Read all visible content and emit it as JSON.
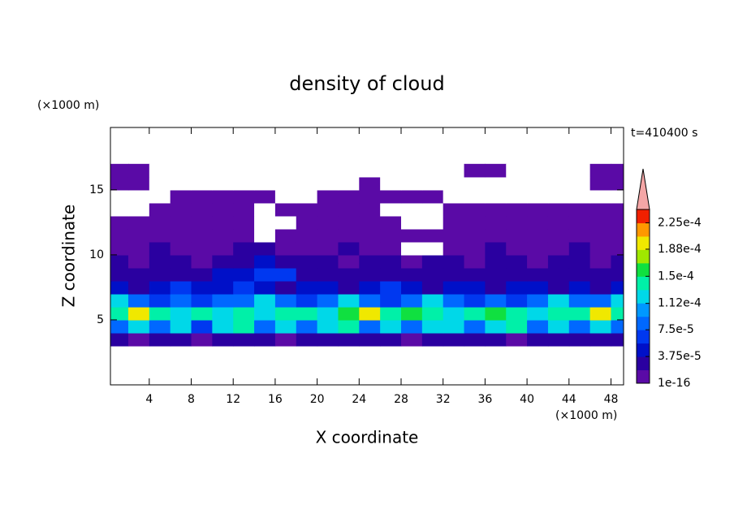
{
  "chart_data": {
    "type": "contour",
    "title": "density of cloud",
    "xlabel": "X coordinate",
    "ylabel": "Z coordinate",
    "xunit": "(×1000 m)",
    "yunit": "(×1000 m)",
    "annotation": "t=410400 s",
    "xlim": [
      0.3,
      49.2
    ],
    "ylim": [
      0,
      19.8
    ],
    "xticks": [
      4,
      8,
      12,
      16,
      20,
      24,
      28,
      32,
      36,
      40,
      44,
      48
    ],
    "yticks": [
      5,
      10,
      15
    ],
    "x": [
      1,
      3,
      5,
      7,
      9,
      11,
      13,
      15,
      17,
      19,
      21,
      23,
      25,
      27,
      29,
      31,
      33,
      35,
      37,
      39,
      41,
      43,
      45,
      47,
      49
    ],
    "z": [
      3.5,
      4.5,
      5.5,
      6.5,
      7.5,
      8.5,
      9.5,
      10.5,
      11.5,
      12.5,
      13.5,
      14.5,
      15.5,
      16.5
    ],
    "density": [
      [
        2e-05,
        1e-05,
        2e-05,
        2e-05,
        1e-05,
        2e-05,
        2e-05,
        2e-05,
        1e-05,
        2e-05,
        2e-05,
        2e-05,
        2e-05,
        2e-05,
        1e-05,
        2e-05,
        2e-05,
        2e-05,
        2e-05,
        1e-05,
        2e-05,
        2e-05,
        2e-05,
        2e-05,
        2e-05
      ],
      [
        9e-05,
        0.00012,
        9e-05,
        0.00012,
        7e-05,
        0.00012,
        0.00014,
        9e-05,
        0.00012,
        9e-05,
        0.00012,
        0.00014,
        9e-05,
        0.00012,
        9e-05,
        0.00012,
        0.00012,
        9e-05,
        0.00012,
        0.00014,
        9e-05,
        0.00012,
        9e-05,
        0.00012,
        9e-05
      ],
      [
        0.00014,
        0.00019,
        0.00014,
        0.00012,
        0.00014,
        0.00012,
        0.00014,
        0.00012,
        0.00014,
        0.00014,
        0.00012,
        0.00016,
        0.00019,
        0.00014,
        0.00016,
        0.00014,
        0.00012,
        0.00014,
        0.00016,
        0.00014,
        0.00012,
        0.00014,
        0.00014,
        0.00019,
        0.00014
      ],
      [
        0.00012,
        9e-05,
        7e-05,
        9e-05,
        7e-05,
        9e-05,
        9e-05,
        0.00012,
        9e-05,
        7e-05,
        9e-05,
        0.00012,
        9e-05,
        7e-05,
        9e-05,
        0.00012,
        9e-05,
        7e-05,
        9e-05,
        7e-05,
        9e-05,
        0.00012,
        9e-05,
        9e-05,
        0.00012
      ],
      [
        5e-05,
        3e-05,
        5e-05,
        7e-05,
        5e-05,
        5e-05,
        7e-05,
        5e-05,
        3e-05,
        5e-05,
        5e-05,
        3e-05,
        5e-05,
        7e-05,
        5e-05,
        3e-05,
        5e-05,
        5e-05,
        3e-05,
        5e-05,
        5e-05,
        3e-05,
        5e-05,
        3e-05,
        5e-05
      ],
      [
        3e-05,
        3e-05,
        2e-05,
        3e-05,
        3e-05,
        5e-05,
        5e-05,
        7e-05,
        7e-05,
        3e-05,
        3e-05,
        2e-05,
        3e-05,
        3e-05,
        2e-05,
        3e-05,
        2e-05,
        3e-05,
        3e-05,
        2e-05,
        3e-05,
        2e-05,
        3e-05,
        3e-05,
        2e-05
      ],
      [
        2e-05,
        1e-05,
        2e-05,
        2e-05,
        1e-05,
        2e-05,
        3e-05,
        5e-05,
        3e-05,
        2e-05,
        2e-05,
        1e-05,
        2e-05,
        2e-05,
        1e-05,
        2e-05,
        2e-05,
        1e-05,
        2e-05,
        2e-05,
        1e-05,
        2e-05,
        2e-05,
        1e-05,
        2e-05
      ],
      [
        1e-05,
        1e-05,
        2e-05,
        1e-05,
        1e-05,
        1e-05,
        2e-05,
        2e-05,
        1e-05,
        1e-05,
        1e-05,
        2e-05,
        1e-05,
        1e-05,
        0,
        0,
        1e-05,
        1e-05,
        2e-05,
        1e-05,
        1e-05,
        1e-05,
        2e-05,
        1e-05,
        1e-05
      ],
      [
        1e-05,
        1e-05,
        1e-05,
        1e-05,
        1e-05,
        1e-05,
        1e-05,
        0,
        1e-05,
        1e-05,
        1e-05,
        1e-05,
        1e-05,
        1e-05,
        1e-05,
        1e-05,
        1e-05,
        1e-05,
        1e-05,
        1e-05,
        1e-05,
        1e-05,
        1e-05,
        1e-05,
        1e-05
      ],
      [
        1e-05,
        1e-05,
        1e-05,
        1e-05,
        1e-05,
        1e-05,
        1e-05,
        0,
        0,
        1e-05,
        1e-05,
        1e-05,
        1e-05,
        1e-05,
        0,
        0,
        1e-05,
        1e-05,
        1e-05,
        1e-05,
        1e-05,
        1e-05,
        1e-05,
        1e-05,
        1e-05
      ],
      [
        0,
        0,
        1e-05,
        1e-05,
        1e-05,
        1e-05,
        1e-05,
        0,
        1e-05,
        1e-05,
        1e-05,
        1e-05,
        1e-05,
        0,
        0,
        0,
        1e-05,
        1e-05,
        1e-05,
        1e-05,
        1e-05,
        1e-05,
        1e-05,
        1e-05,
        1e-05
      ],
      [
        0,
        0,
        0,
        1e-05,
        1e-05,
        1e-05,
        1e-05,
        1e-05,
        0,
        0,
        1e-05,
        1e-05,
        1e-05,
        1e-05,
        1e-05,
        1e-05,
        0,
        0,
        0,
        0,
        0,
        0,
        0,
        0,
        0
      ],
      [
        1e-05,
        1e-05,
        0,
        0,
        0,
        0,
        0,
        0,
        0,
        0,
        0,
        0,
        1e-05,
        0,
        0,
        0,
        0,
        0,
        0,
        0,
        0,
        0,
        0,
        1e-05,
        1e-05
      ],
      [
        1e-05,
        1e-05,
        0,
        0,
        0,
        0,
        0,
        0,
        0,
        0,
        0,
        0,
        0,
        0,
        0,
        0,
        0,
        1e-05,
        1e-05,
        0,
        0,
        0,
        0,
        1e-05,
        1e-05
      ]
    ],
    "levels": [
      1e-16,
      1.875e-05,
      3.75e-05,
      5.625e-05,
      7.5e-05,
      9.375e-05,
      0.0001125,
      0.00013125,
      0.00015,
      0.00016875,
      0.0001875,
      0.00020625,
      0.000225
    ],
    "colors": [
      "#5a0aa6",
      "#2a00a0",
      "#0010c8",
      "#0038f0",
      "#0068ff",
      "#0098ff",
      "#00d8e8",
      "#00f0a8",
      "#10e040",
      "#a0e800",
      "#f0e800",
      "#ff9800",
      "#f02000"
    ],
    "extend_color": "#f4a6a6",
    "cblim": [
      1e-16,
      0.00024375
    ],
    "cbticks": [
      1e-16,
      {
        "value": 3.75e-05,
        "label": "3.75e-5"
      },
      {
        "value": 7.5e-05,
        "label": "7.5e-5"
      },
      {
        "value": 0.000112,
        "label": "1.12e-4"
      },
      {
        "value": 0.00015,
        "label": "1.5e-4"
      },
      {
        "value": 0.000188,
        "label": "1.88e-4"
      },
      {
        "value": 0.000225,
        "label": "2.25e-4"
      }
    ]
  }
}
